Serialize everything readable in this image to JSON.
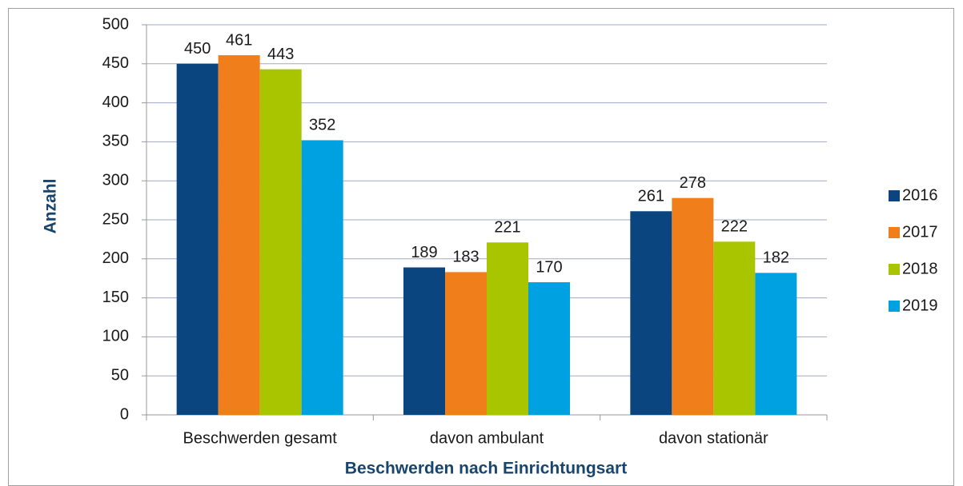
{
  "chart_data": {
    "type": "bar",
    "categories": [
      "Beschwerden gesamt",
      "davon ambulant",
      "davon stationär"
    ],
    "series": [
      {
        "name": "2016",
        "color": "#0b4580",
        "values": [
          450,
          189,
          261
        ]
      },
      {
        "name": "2017",
        "color": "#f07f1b",
        "values": [
          461,
          183,
          278
        ]
      },
      {
        "name": "2018",
        "color": "#a9c500",
        "values": [
          443,
          221,
          222
        ]
      },
      {
        "name": "2019",
        "color": "#00a1e0",
        "values": [
          352,
          170,
          182
        ]
      }
    ],
    "ylabel": "Anzahl",
    "xlabel": "Beschwerden nach Einrichtungsart",
    "ylim": [
      0,
      500
    ],
    "yticks": [
      0,
      50,
      100,
      150,
      200,
      250,
      300,
      350,
      400,
      450,
      500
    ],
    "grid": true,
    "legend": "right"
  }
}
